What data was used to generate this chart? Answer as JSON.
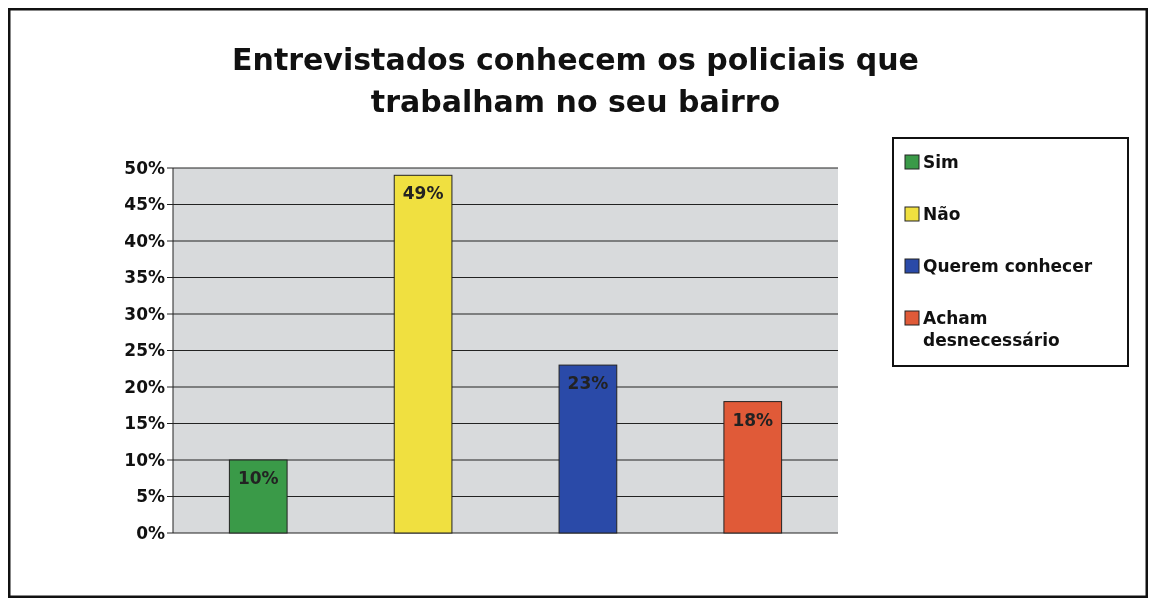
{
  "chart_data": {
    "type": "bar",
    "title": "Entrevistados conhecem os policiais que trabalham no seu bairro",
    "categories": [
      null
    ],
    "series": [
      {
        "name": "Sim",
        "color": "#3a9a48",
        "values": [
          10
        ],
        "value_labels": [
          "10%"
        ]
      },
      {
        "name": "Não",
        "color": "#f0e040",
        "values": [
          49
        ],
        "value_labels": [
          "49%"
        ]
      },
      {
        "name": "Querem conhecer",
        "color": "#2a4aa8",
        "values": [
          23
        ],
        "value_labels": [
          "23%"
        ]
      },
      {
        "name": "Acham desnecessário",
        "color": "#e05a38",
        "values": [
          18
        ],
        "value_labels": [
          "18%"
        ]
      }
    ],
    "ylim": [
      0,
      50
    ],
    "yticks": [
      {
        "value": 0,
        "label": "0%"
      },
      {
        "value": 5,
        "label": "5%"
      },
      {
        "value": 10,
        "label": "10%"
      },
      {
        "value": 15,
        "label": "15%"
      },
      {
        "value": 20,
        "label": "20%"
      },
      {
        "value": 25,
        "label": "25%"
      },
      {
        "value": 30,
        "label": "30%"
      },
      {
        "value": 35,
        "label": "35%"
      },
      {
        "value": 40,
        "label": "40%"
      },
      {
        "value": 45,
        "label": "45%"
      },
      {
        "value": 50,
        "label": "50%"
      }
    ],
    "grid": "y",
    "legend": "right"
  }
}
